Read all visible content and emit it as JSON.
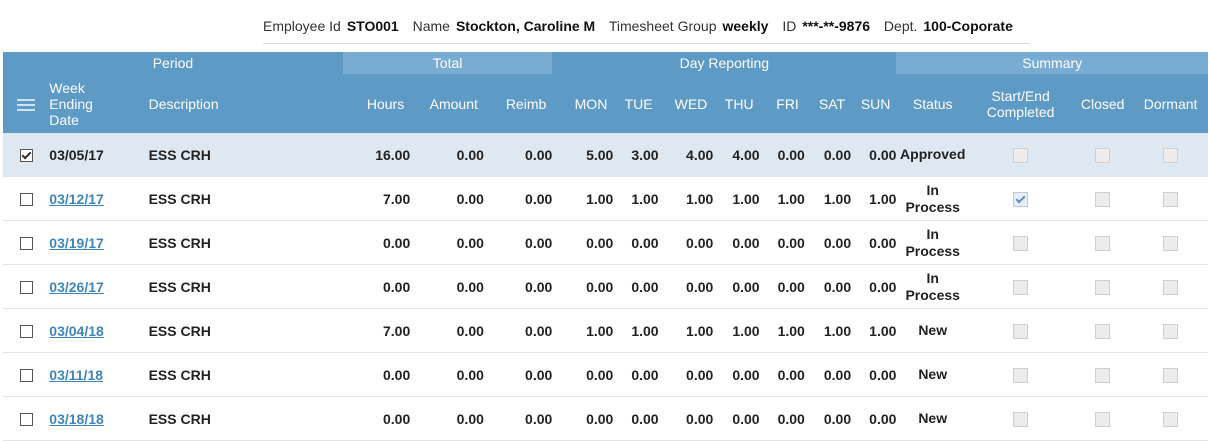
{
  "employee": {
    "id_label": "Employee Id",
    "id_value": "STO001",
    "name_label": "Name",
    "name_value": "Stockton, Caroline M",
    "group_label": "Timesheet Group",
    "group_value": "weekly",
    "ssn_label": "ID",
    "ssn_value": "***-**-9876",
    "dept_label": "Dept.",
    "dept_value": "100-Coporate"
  },
  "groups": {
    "period": "Period",
    "total": "Total",
    "day_reporting": "Day Reporting",
    "summary": "Summary"
  },
  "columns": {
    "week_ending_line1": "Week",
    "week_ending_line2": "Ending",
    "week_ending_line3": "Date",
    "description": "Description",
    "hours": "Hours",
    "amount": "Amount",
    "reimb": "Reimb",
    "mon": "MON",
    "tue": "TUE",
    "wed": "WED",
    "thu": "THU",
    "fri": "FRI",
    "sat": "SAT",
    "sun": "SUN",
    "status": "Status",
    "start_end_line1": "Start/End",
    "start_end_line2": "Completed",
    "closed": "Closed",
    "dormant": "Dormant"
  },
  "rows": [
    {
      "selected": true,
      "date": "03/05/17",
      "link": false,
      "desc": "ESS CRH",
      "hours": "16.00",
      "amount": "0.00",
      "reimb": "0.00",
      "days": [
        "5.00",
        "3.00",
        "4.00",
        "4.00",
        "0.00",
        "0.00",
        "0.00"
      ],
      "status": [
        "Approved"
      ],
      "start_end": false,
      "closed": false,
      "dormant": false
    },
    {
      "selected": false,
      "date": "03/12/17",
      "link": true,
      "desc": "ESS CRH",
      "hours": "7.00",
      "amount": "0.00",
      "reimb": "0.00",
      "days": [
        "1.00",
        "1.00",
        "1.00",
        "1.00",
        "1.00",
        "1.00",
        "1.00"
      ],
      "status": [
        "In",
        "Process"
      ],
      "start_end": true,
      "closed": false,
      "dormant": false
    },
    {
      "selected": false,
      "date": "03/19/17",
      "link": true,
      "desc": "ESS CRH",
      "hours": "0.00",
      "amount": "0.00",
      "reimb": "0.00",
      "days": [
        "0.00",
        "0.00",
        "0.00",
        "0.00",
        "0.00",
        "0.00",
        "0.00"
      ],
      "status": [
        "In",
        "Process"
      ],
      "start_end": false,
      "closed": false,
      "dormant": false
    },
    {
      "selected": false,
      "date": "03/26/17",
      "link": true,
      "desc": "ESS CRH",
      "hours": "0.00",
      "amount": "0.00",
      "reimb": "0.00",
      "days": [
        "0.00",
        "0.00",
        "0.00",
        "0.00",
        "0.00",
        "0.00",
        "0.00"
      ],
      "status": [
        "In",
        "Process"
      ],
      "start_end": false,
      "closed": false,
      "dormant": false
    },
    {
      "selected": false,
      "date": "03/04/18",
      "link": true,
      "desc": "ESS CRH",
      "hours": "7.00",
      "amount": "0.00",
      "reimb": "0.00",
      "days": [
        "1.00",
        "1.00",
        "1.00",
        "1.00",
        "1.00",
        "1.00",
        "1.00"
      ],
      "status": [
        "New"
      ],
      "start_end": false,
      "closed": false,
      "dormant": false
    },
    {
      "selected": false,
      "date": "03/11/18",
      "link": true,
      "desc": "ESS CRH",
      "hours": "0.00",
      "amount": "0.00",
      "reimb": "0.00",
      "days": [
        "0.00",
        "0.00",
        "0.00",
        "0.00",
        "0.00",
        "0.00",
        "0.00"
      ],
      "status": [
        "New"
      ],
      "start_end": false,
      "closed": false,
      "dormant": false
    },
    {
      "selected": false,
      "date": "03/18/18",
      "link": true,
      "desc": "ESS CRH",
      "hours": "0.00",
      "amount": "0.00",
      "reimb": "0.00",
      "days": [
        "0.00",
        "0.00",
        "0.00",
        "0.00",
        "0.00",
        "0.00",
        "0.00"
      ],
      "status": [
        "New"
      ],
      "start_end": false,
      "closed": false,
      "dormant": false
    }
  ],
  "colors": {
    "header_bg": "#5d9ac6",
    "header_alt_bg": "#78acd2",
    "selected_row_bg": "#dde8f0",
    "link": "#3f86b8"
  }
}
